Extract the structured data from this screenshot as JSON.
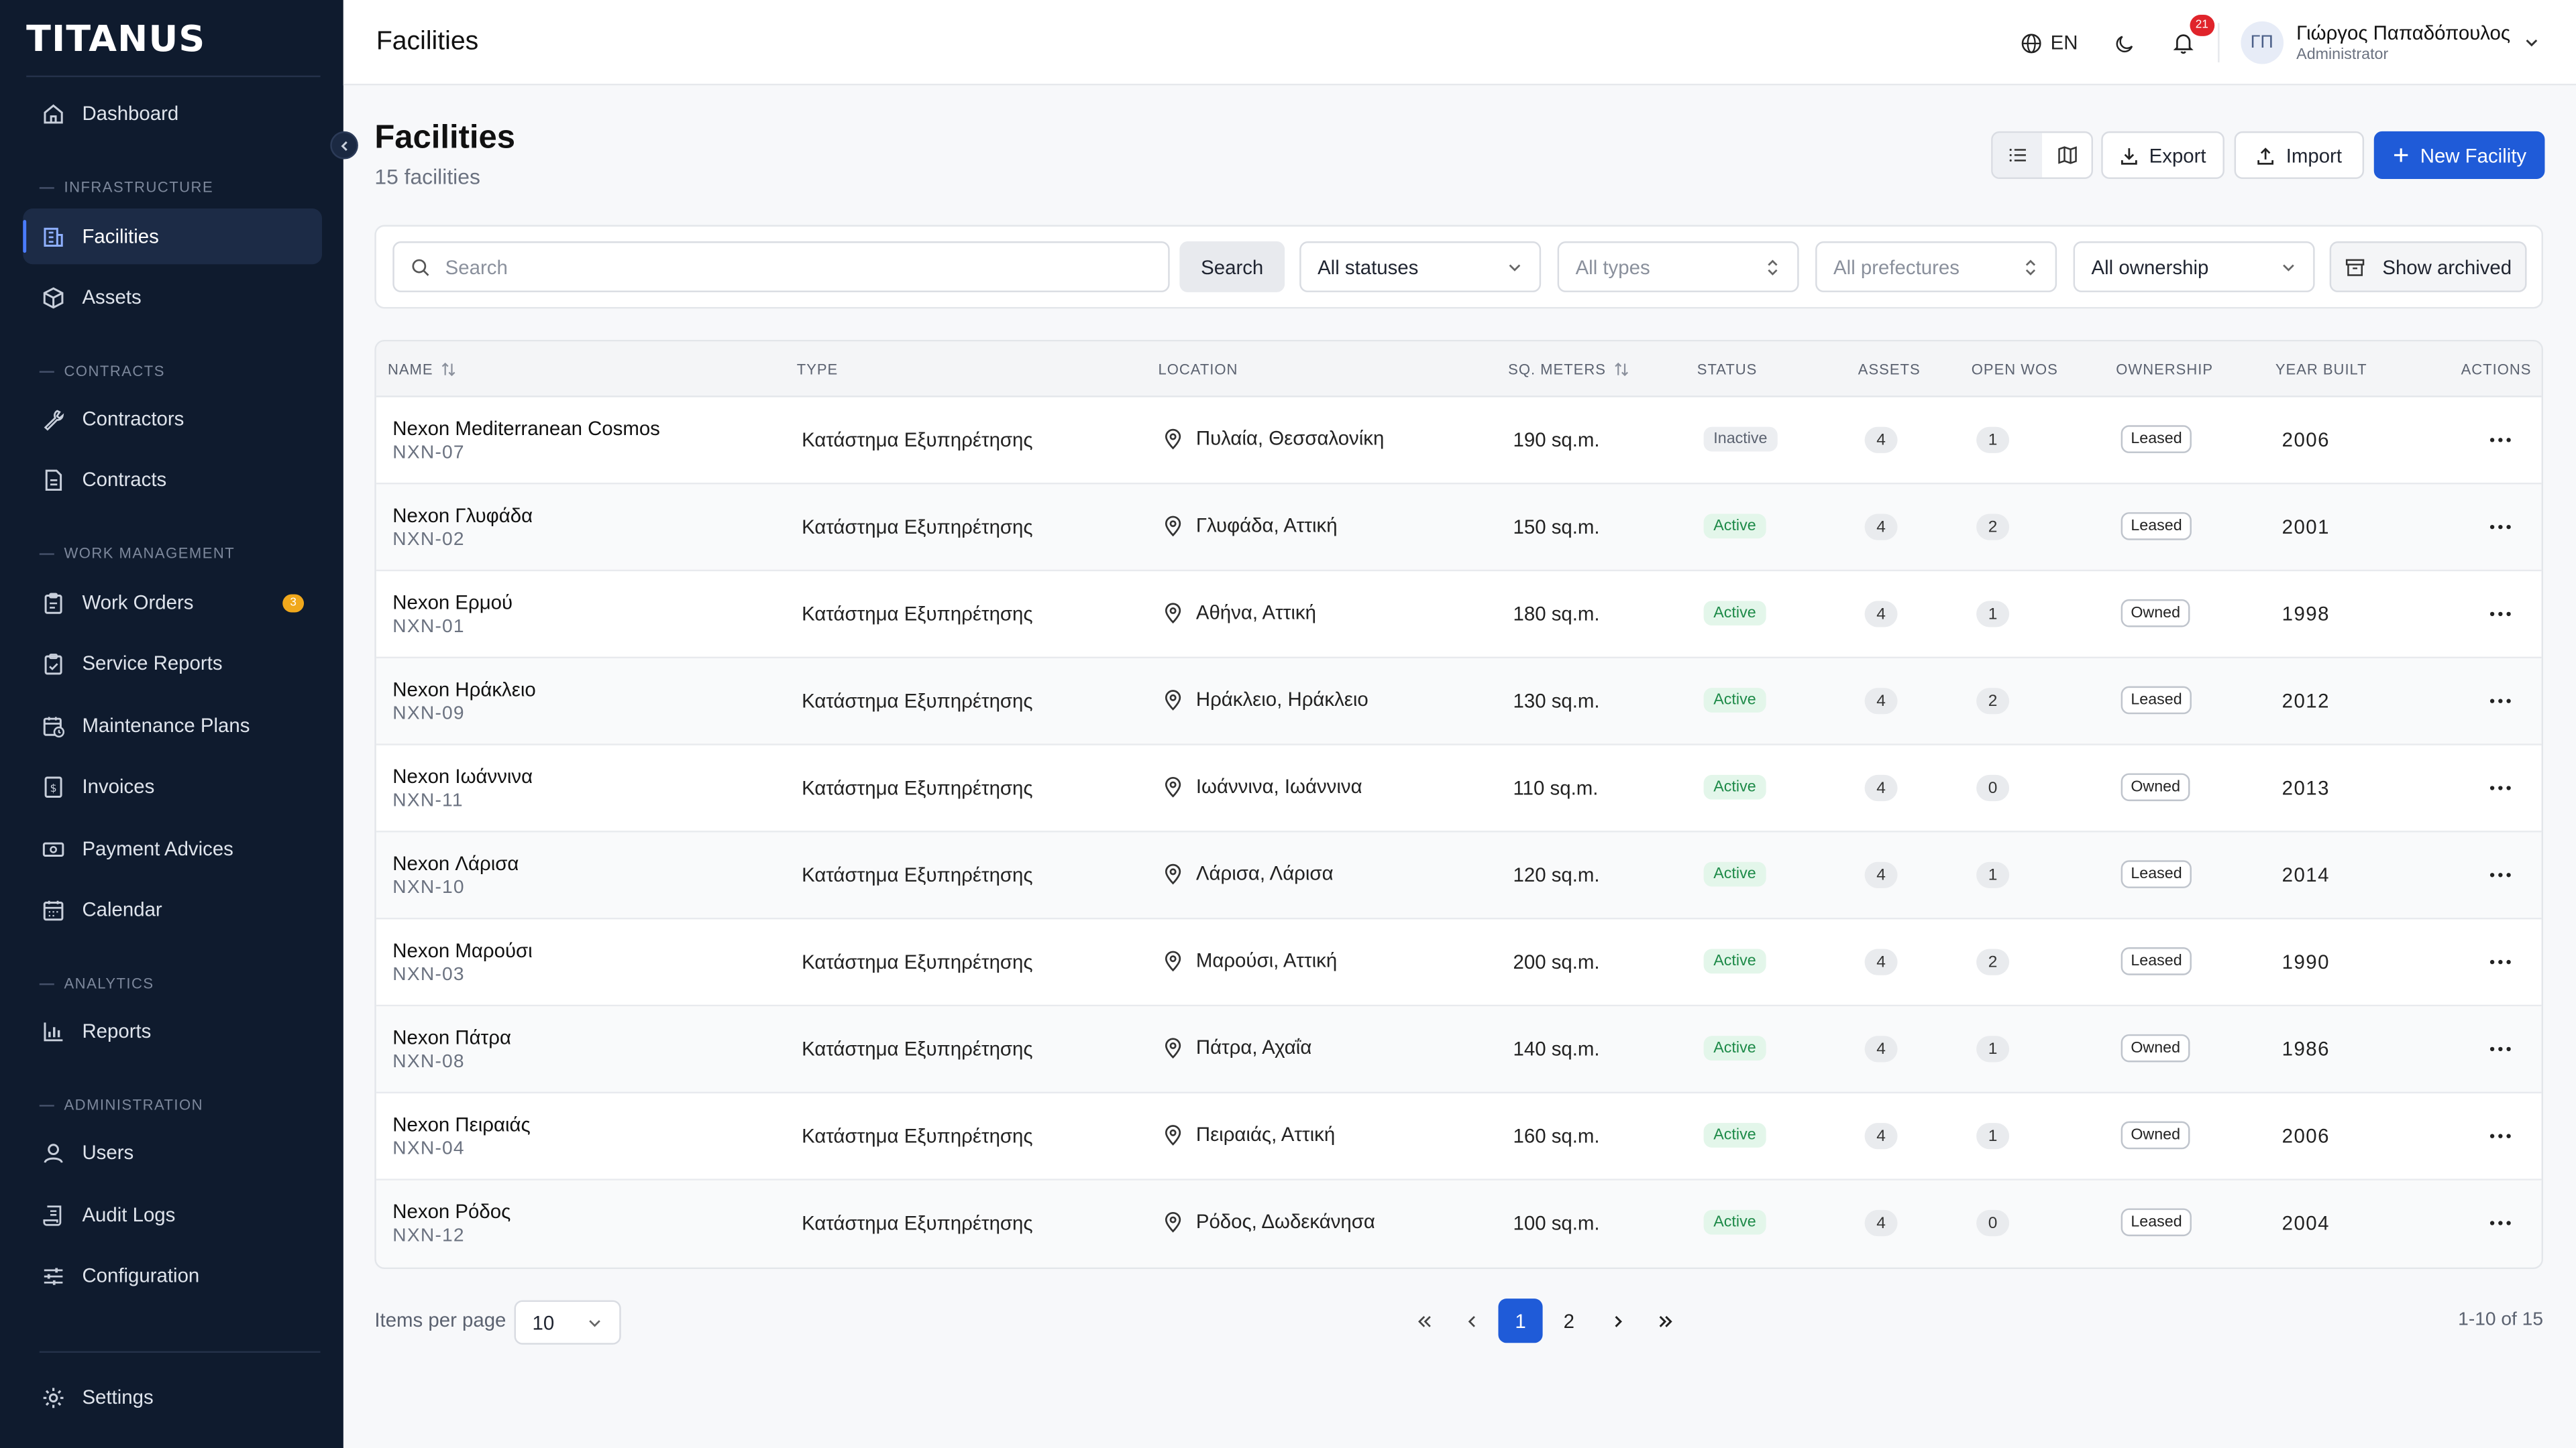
{
  "app": {
    "logo": "TITANUS"
  },
  "topbar": {
    "title": "Facilities",
    "language": "EN",
    "notifications_count": "21",
    "user": {
      "initials": "ΓΠ",
      "name": "Γιώργος Παπαδόπουλος",
      "role": "Administrator"
    }
  },
  "sidebar": {
    "dashboard": "Dashboard",
    "sections": {
      "infrastructure": "INFRASTRUCTURE",
      "contracts": "CONTRACTS",
      "work_management": "WORK MANAGEMENT",
      "analytics": "ANALYTICS",
      "administration": "ADMINISTRATION"
    },
    "items": {
      "facilities": "Facilities",
      "assets": "Assets",
      "contractors": "Contractors",
      "contracts": "Contracts",
      "work_orders": "Work Orders",
      "work_orders_badge": "3",
      "service_reports": "Service Reports",
      "maintenance_plans": "Maintenance Plans",
      "invoices": "Invoices",
      "payment_advices": "Payment Advices",
      "calendar": "Calendar",
      "reports": "Reports",
      "users": "Users",
      "audit_logs": "Audit Logs",
      "configuration": "Configuration",
      "settings": "Settings"
    }
  },
  "page": {
    "title": "Facilities",
    "subtitle": "15 facilities",
    "export_label": "Export",
    "import_label": "Import",
    "new_label": "New Facility"
  },
  "filters": {
    "search_placeholder": "Search",
    "search_button": "Search",
    "status": "All statuses",
    "type": "All types",
    "prefecture": "All prefectures",
    "ownership": "All ownership",
    "archived": "Show archived"
  },
  "table": {
    "headers": {
      "name": "NAME",
      "type": "TYPE",
      "location": "LOCATION",
      "sqm": "SQ. METERS",
      "status": "STATUS",
      "assets": "ASSETS",
      "open_wos": "OPEN WOS",
      "ownership": "OWNERSHIP",
      "year_built": "YEAR BUILT",
      "actions": "ACTIONS"
    },
    "rows": [
      {
        "name": "Nexon Mediterranean Cosmos",
        "code": "NXN-07",
        "type": "Κατάστημα Εξυπηρέτησης",
        "location": "Πυλαία, Θεσσαλονίκη",
        "sqm": "190 sq.m.",
        "status": "Inactive",
        "assets": "4",
        "wos": "1",
        "ownership": "Leased",
        "year": "2006"
      },
      {
        "name": "Nexon Γλυφάδα",
        "code": "NXN-02",
        "type": "Κατάστημα Εξυπηρέτησης",
        "location": "Γλυφάδα, Αττική",
        "sqm": "150 sq.m.",
        "status": "Active",
        "assets": "4",
        "wos": "2",
        "ownership": "Leased",
        "year": "2001"
      },
      {
        "name": "Nexon Ερμού",
        "code": "NXN-01",
        "type": "Κατάστημα Εξυπηρέτησης",
        "location": "Αθήνα, Αττική",
        "sqm": "180 sq.m.",
        "status": "Active",
        "assets": "4",
        "wos": "1",
        "ownership": "Owned",
        "year": "1998"
      },
      {
        "name": "Nexon Ηράκλειο",
        "code": "NXN-09",
        "type": "Κατάστημα Εξυπηρέτησης",
        "location": "Ηράκλειο, Ηράκλειο",
        "sqm": "130 sq.m.",
        "status": "Active",
        "assets": "4",
        "wos": "2",
        "ownership": "Leased",
        "year": "2012"
      },
      {
        "name": "Nexon Ιωάννινα",
        "code": "NXN-11",
        "type": "Κατάστημα Εξυπηρέτησης",
        "location": "Ιωάννινα, Ιωάννινα",
        "sqm": "110 sq.m.",
        "status": "Active",
        "assets": "4",
        "wos": "0",
        "ownership": "Owned",
        "year": "2013"
      },
      {
        "name": "Nexon Λάρισα",
        "code": "NXN-10",
        "type": "Κατάστημα Εξυπηρέτησης",
        "location": "Λάρισα, Λάρισα",
        "sqm": "120 sq.m.",
        "status": "Active",
        "assets": "4",
        "wos": "1",
        "ownership": "Leased",
        "year": "2014"
      },
      {
        "name": "Nexon Μαρούσι",
        "code": "NXN-03",
        "type": "Κατάστημα Εξυπηρέτησης",
        "location": "Μαρούσι, Αττική",
        "sqm": "200 sq.m.",
        "status": "Active",
        "assets": "4",
        "wos": "2",
        "ownership": "Leased",
        "year": "1990"
      },
      {
        "name": "Nexon Πάτρα",
        "code": "NXN-08",
        "type": "Κατάστημα Εξυπηρέτησης",
        "location": "Πάτρα, Αχαΐα",
        "sqm": "140 sq.m.",
        "status": "Active",
        "assets": "4",
        "wos": "1",
        "ownership": "Owned",
        "year": "1986"
      },
      {
        "name": "Nexon Πειραιάς",
        "code": "NXN-04",
        "type": "Κατάστημα Εξυπηρέτησης",
        "location": "Πειραιάς, Αττική",
        "sqm": "160 sq.m.",
        "status": "Active",
        "assets": "4",
        "wos": "1",
        "ownership": "Owned",
        "year": "2006"
      },
      {
        "name": "Nexon Ρόδος",
        "code": "NXN-12",
        "type": "Κατάστημα Εξυπηρέτησης",
        "location": "Ρόδος, Δωδεκάνησα",
        "sqm": "100 sq.m.",
        "status": "Active",
        "assets": "4",
        "wos": "0",
        "ownership": "Leased",
        "year": "2004"
      }
    ]
  },
  "footer": {
    "items_per_page_label": "Items per page",
    "items_per_page": "10",
    "pages": [
      "1",
      "2"
    ],
    "current_page": "1",
    "range": "1-10 of 15"
  },
  "colors": {
    "accent": "#1f5bd8",
    "sidebar_bg": "#0f1b2e",
    "active_status": "#1d8a48",
    "badge_red": "#e0242b",
    "badge_amber": "#f0a81c"
  }
}
